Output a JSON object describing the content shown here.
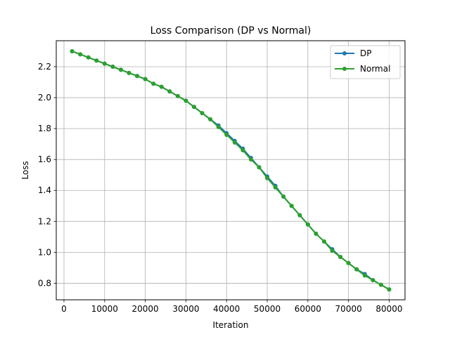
{
  "chart_data": {
    "type": "line",
    "title": "Loss Comparison (DP vs Normal)",
    "xlabel": "Iteration",
    "ylabel": "Loss",
    "xlim": [
      -1900,
      83900
    ],
    "ylim": [
      0.693,
      2.368
    ],
    "xticks": [
      0,
      10000,
      20000,
      30000,
      40000,
      50000,
      60000,
      70000,
      80000
    ],
    "xtick_labels": [
      "0",
      "10000",
      "20000",
      "30000",
      "40000",
      "50000",
      "60000",
      "70000",
      "80000"
    ],
    "yticks": [
      0.8,
      1.0,
      1.2,
      1.4,
      1.6,
      1.8,
      2.0,
      2.2
    ],
    "ytick_labels": [
      "0.8",
      "1.0",
      "1.2",
      "1.4",
      "1.6",
      "1.8",
      "2.0",
      "2.2"
    ],
    "grid": true,
    "legend_position": "top-right",
    "x": [
      2000,
      4000,
      6000,
      8000,
      10000,
      12000,
      14000,
      16000,
      18000,
      20000,
      22000,
      24000,
      26000,
      28000,
      30000,
      32000,
      34000,
      36000,
      38000,
      40000,
      42000,
      44000,
      46000,
      48000,
      50000,
      52000,
      54000,
      56000,
      58000,
      60000,
      62000,
      64000,
      66000,
      68000,
      70000,
      72000,
      74000,
      76000,
      78000,
      80000
    ],
    "series": [
      {
        "name": "DP",
        "color": "#1f77b4",
        "values": [
          2.3,
          2.28,
          2.26,
          2.24,
          2.22,
          2.2,
          2.18,
          2.16,
          2.14,
          2.12,
          2.09,
          2.07,
          2.04,
          2.01,
          1.98,
          1.94,
          1.9,
          1.86,
          1.82,
          1.77,
          1.72,
          1.67,
          1.61,
          1.55,
          1.49,
          1.43,
          1.36,
          1.3,
          1.24,
          1.18,
          1.12,
          1.07,
          1.02,
          0.97,
          0.93,
          0.89,
          0.86,
          0.82,
          0.79,
          0.76
        ]
      },
      {
        "name": "Normal",
        "color": "#2ca02c",
        "values": [
          2.3,
          2.28,
          2.26,
          2.24,
          2.22,
          2.2,
          2.18,
          2.16,
          2.14,
          2.12,
          2.09,
          2.07,
          2.04,
          2.01,
          1.98,
          1.94,
          1.9,
          1.86,
          1.81,
          1.76,
          1.71,
          1.66,
          1.6,
          1.55,
          1.48,
          1.42,
          1.36,
          1.3,
          1.24,
          1.18,
          1.12,
          1.07,
          1.01,
          0.97,
          0.93,
          0.89,
          0.85,
          0.82,
          0.79,
          0.76
        ]
      }
    ]
  }
}
